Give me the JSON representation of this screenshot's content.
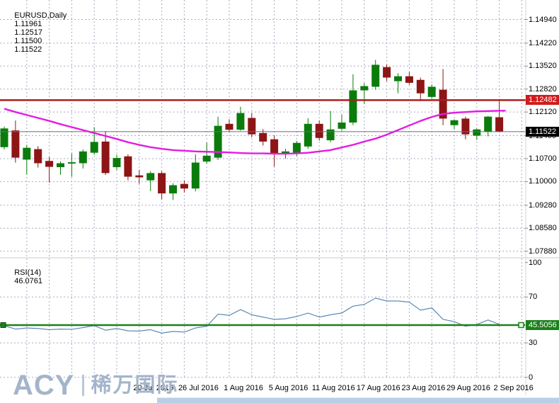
{
  "header": {
    "symbol_title": "EURUSD,Daily",
    "open": "1.11961",
    "high": "1.12517",
    "low": "1.11500",
    "close": "1.11522"
  },
  "main_pane": {
    "price_axis_labels": [
      "1.14940",
      "1.14220",
      "1.13520",
      "1.12820",
      "1.12120",
      "1.11400",
      "1.10700",
      "1.10000",
      "1.09280",
      "1.08580",
      "1.07880"
    ],
    "hline_badge": "1.12482",
    "bid_badge": "1.11522"
  },
  "rsi_pane": {
    "indicator_name": "RSI(14)",
    "indicator_value": "46.0761",
    "axis_labels": [
      "100",
      "70",
      "30",
      "0"
    ],
    "hline_badge": "45.5056"
  },
  "date_axis": {
    "labels": [
      "20 Jul 2016",
      "26 Jul 2016",
      "1 Aug 2016",
      "5 Aug 2016",
      "11 Aug 2016",
      "17 Aug 2016",
      "23 Aug 2016",
      "29 Aug 2016",
      "2 Sep 2016"
    ]
  },
  "logo": {
    "brand": "ACY",
    "cn_name": "稀万国际"
  },
  "colors": {
    "grid": "#a9a9c2",
    "bull": "#0b7c0b",
    "bear": "#8e1515",
    "ma": "#e21ce2",
    "rsi_line": "#4f7fae",
    "hline_red": "#ab1f1f",
    "hline_green": "#1b801b",
    "bid_line": "#6a6a8e",
    "tick": "#8a8a9a",
    "divider": "#c9c9c9"
  },
  "chart_data": {
    "type": "candlestick",
    "symbol": "EURUSD",
    "timeframe": "Daily",
    "title_ohlc": {
      "open": 1.11961,
      "high": 1.12517,
      "low": 1.115,
      "close": 1.11522
    },
    "dates": [
      "4 Jul 2016",
      "5 Jul 2016",
      "6 Jul 2016",
      "7 Jul 2016",
      "8 Jul 2016",
      "11 Jul 2016",
      "12 Jul 2016",
      "13 Jul 2016",
      "14 Jul 2016",
      "15 Jul 2016",
      "18 Jul 2016",
      "19 Jul 2016",
      "20 Jul 2016",
      "21 Jul 2016",
      "22 Jul 2016",
      "25 Jul 2016",
      "26 Jul 2016",
      "27 Jul 2016",
      "28 Jul 2016",
      "29 Jul 2016",
      "1 Aug 2016",
      "2 Aug 2016",
      "3 Aug 2016",
      "4 Aug 2016",
      "5 Aug 2016",
      "8 Aug 2016",
      "9 Aug 2016",
      "10 Aug 2016",
      "11 Aug 2016",
      "12 Aug 2016",
      "15 Aug 2016",
      "16 Aug 2016",
      "17 Aug 2016",
      "18 Aug 2016",
      "19 Aug 2016",
      "22 Aug 2016",
      "23 Aug 2016",
      "24 Aug 2016",
      "25 Aug 2016",
      "26 Aug 2016",
      "29 Aug 2016",
      "30 Aug 2016",
      "31 Aug 2016",
      "1 Sep 2016",
      "2 Sep 2016"
    ],
    "ohlc": [
      [
        1.1105,
        1.1168,
        1.1098,
        1.1162
      ],
      [
        1.1156,
        1.1186,
        1.1058,
        1.1073
      ],
      [
        1.1067,
        1.1112,
        1.1022,
        1.1103
      ],
      [
        1.1099,
        1.1108,
        1.1043,
        1.1056
      ],
      [
        1.1063,
        1.1075,
        1.0997,
        1.1045
      ],
      [
        1.1044,
        1.1062,
        1.1021,
        1.1056
      ],
      [
        1.1055,
        1.1086,
        1.1015,
        1.1059
      ],
      [
        1.1056,
        1.1098,
        1.104,
        1.1092
      ],
      [
        1.1088,
        1.1166,
        1.1082,
        1.1121
      ],
      [
        1.1122,
        1.1154,
        1.102,
        1.1026
      ],
      [
        1.1044,
        1.1082,
        1.1036,
        1.1072
      ],
      [
        1.1077,
        1.1083,
        1.1004,
        1.1015
      ],
      [
        1.1019,
        1.1036,
        1.0993,
        1.1013
      ],
      [
        1.1004,
        1.1032,
        1.0971,
        1.1026
      ],
      [
        1.1026,
        1.1032,
        1.0946,
        1.0964
      ],
      [
        1.0964,
        1.0995,
        1.0944,
        1.0989
      ],
      [
        1.0993,
        1.1004,
        1.0967,
        1.0979
      ],
      [
        1.0979,
        1.1083,
        1.097,
        1.1058
      ],
      [
        1.1061,
        1.1119,
        1.1055,
        1.1079
      ],
      [
        1.1073,
        1.1198,
        1.1066,
        1.117
      ],
      [
        1.1176,
        1.119,
        1.115,
        1.1158
      ],
      [
        1.1158,
        1.1228,
        1.1155,
        1.1209
      ],
      [
        1.1194,
        1.1209,
        1.1135,
        1.1144
      ],
      [
        1.1148,
        1.116,
        1.111,
        1.1122
      ],
      [
        1.1129,
        1.114,
        1.1046,
        1.1084
      ],
      [
        1.1084,
        1.11,
        1.107,
        1.1092
      ],
      [
        1.1086,
        1.1124,
        1.1078,
        1.1118
      ],
      [
        1.1107,
        1.1193,
        1.11,
        1.1176
      ],
      [
        1.1176,
        1.1186,
        1.1125,
        1.1133
      ],
      [
        1.1126,
        1.1215,
        1.112,
        1.1159
      ],
      [
        1.1161,
        1.1204,
        1.1155,
        1.118
      ],
      [
        1.118,
        1.1327,
        1.1172,
        1.1278
      ],
      [
        1.1278,
        1.13,
        1.1237,
        1.1291
      ],
      [
        1.1289,
        1.1371,
        1.128,
        1.1356
      ],
      [
        1.1349,
        1.1357,
        1.1306,
        1.1317
      ],
      [
        1.1306,
        1.133,
        1.1269,
        1.1321
      ],
      [
        1.1321,
        1.1334,
        1.1295,
        1.1301
      ],
      [
        1.131,
        1.1317,
        1.1245,
        1.1269
      ],
      [
        1.1258,
        1.1296,
        1.1252,
        1.1289
      ],
      [
        1.128,
        1.1343,
        1.1172,
        1.1192
      ],
      [
        1.1172,
        1.119,
        1.1159,
        1.1187
      ],
      [
        1.1192,
        1.1198,
        1.1129,
        1.1144
      ],
      [
        1.114,
        1.1162,
        1.1127,
        1.1159
      ],
      [
        1.1151,
        1.12,
        1.1138,
        1.1198
      ],
      [
        1.11961,
        1.12517,
        1.115,
        1.11522
      ]
    ],
    "ma_line": [
      1.1222,
      1.1212,
      1.1203,
      1.1194,
      1.1185,
      1.1175,
      1.1166,
      1.1157,
      1.1148,
      1.1139,
      1.113,
      1.112,
      1.1112,
      1.1105,
      1.11,
      1.1096,
      1.1094,
      1.1092,
      1.1091,
      1.109,
      1.1089,
      1.1087,
      1.1086,
      1.1086,
      1.1085,
      1.1085,
      1.1086,
      1.1088,
      1.1092,
      1.1096,
      1.1104,
      1.1112,
      1.1122,
      1.1131,
      1.1143,
      1.1157,
      1.1171,
      1.1185,
      1.1197,
      1.1206,
      1.121,
      1.1212,
      1.1214,
      1.1215,
      1.1216
    ],
    "rsi14": [
      45.0,
      42.0,
      43.0,
      42.5,
      41.5,
      42.0,
      41.8,
      43.3,
      45.0,
      41.0,
      42.5,
      40.5,
      40.3,
      41.5,
      38.5,
      40.0,
      39.4,
      43.0,
      44.5,
      55.0,
      54.0,
      59.0,
      54.5,
      52.5,
      50.5,
      51.0,
      53.0,
      56.0,
      52.5,
      54.5,
      56.0,
      62.0,
      63.5,
      69.0,
      66.5,
      66.5,
      65.5,
      58.5,
      60.5,
      50.5,
      48.5,
      44.5,
      46.0,
      50.0,
      46.08
    ],
    "rsi_current": 46.0761,
    "price_axis_ticks": [
      1.1494,
      1.1422,
      1.1352,
      1.1282,
      1.1212,
      1.114,
      1.107,
      1.1,
      1.0928,
      1.0858,
      1.0788
    ],
    "rsi_axis_ticks": [
      100,
      70,
      30,
      0
    ],
    "hlines": [
      {
        "pane": "price",
        "level": 1.12482
      },
      {
        "pane": "rsi",
        "level": 45.5056
      }
    ],
    "bid_price": 1.11522,
    "date_tick_indices": [
      12,
      16,
      20,
      24,
      28,
      32,
      36,
      40,
      44
    ],
    "legend_position": "none",
    "grid": true
  }
}
